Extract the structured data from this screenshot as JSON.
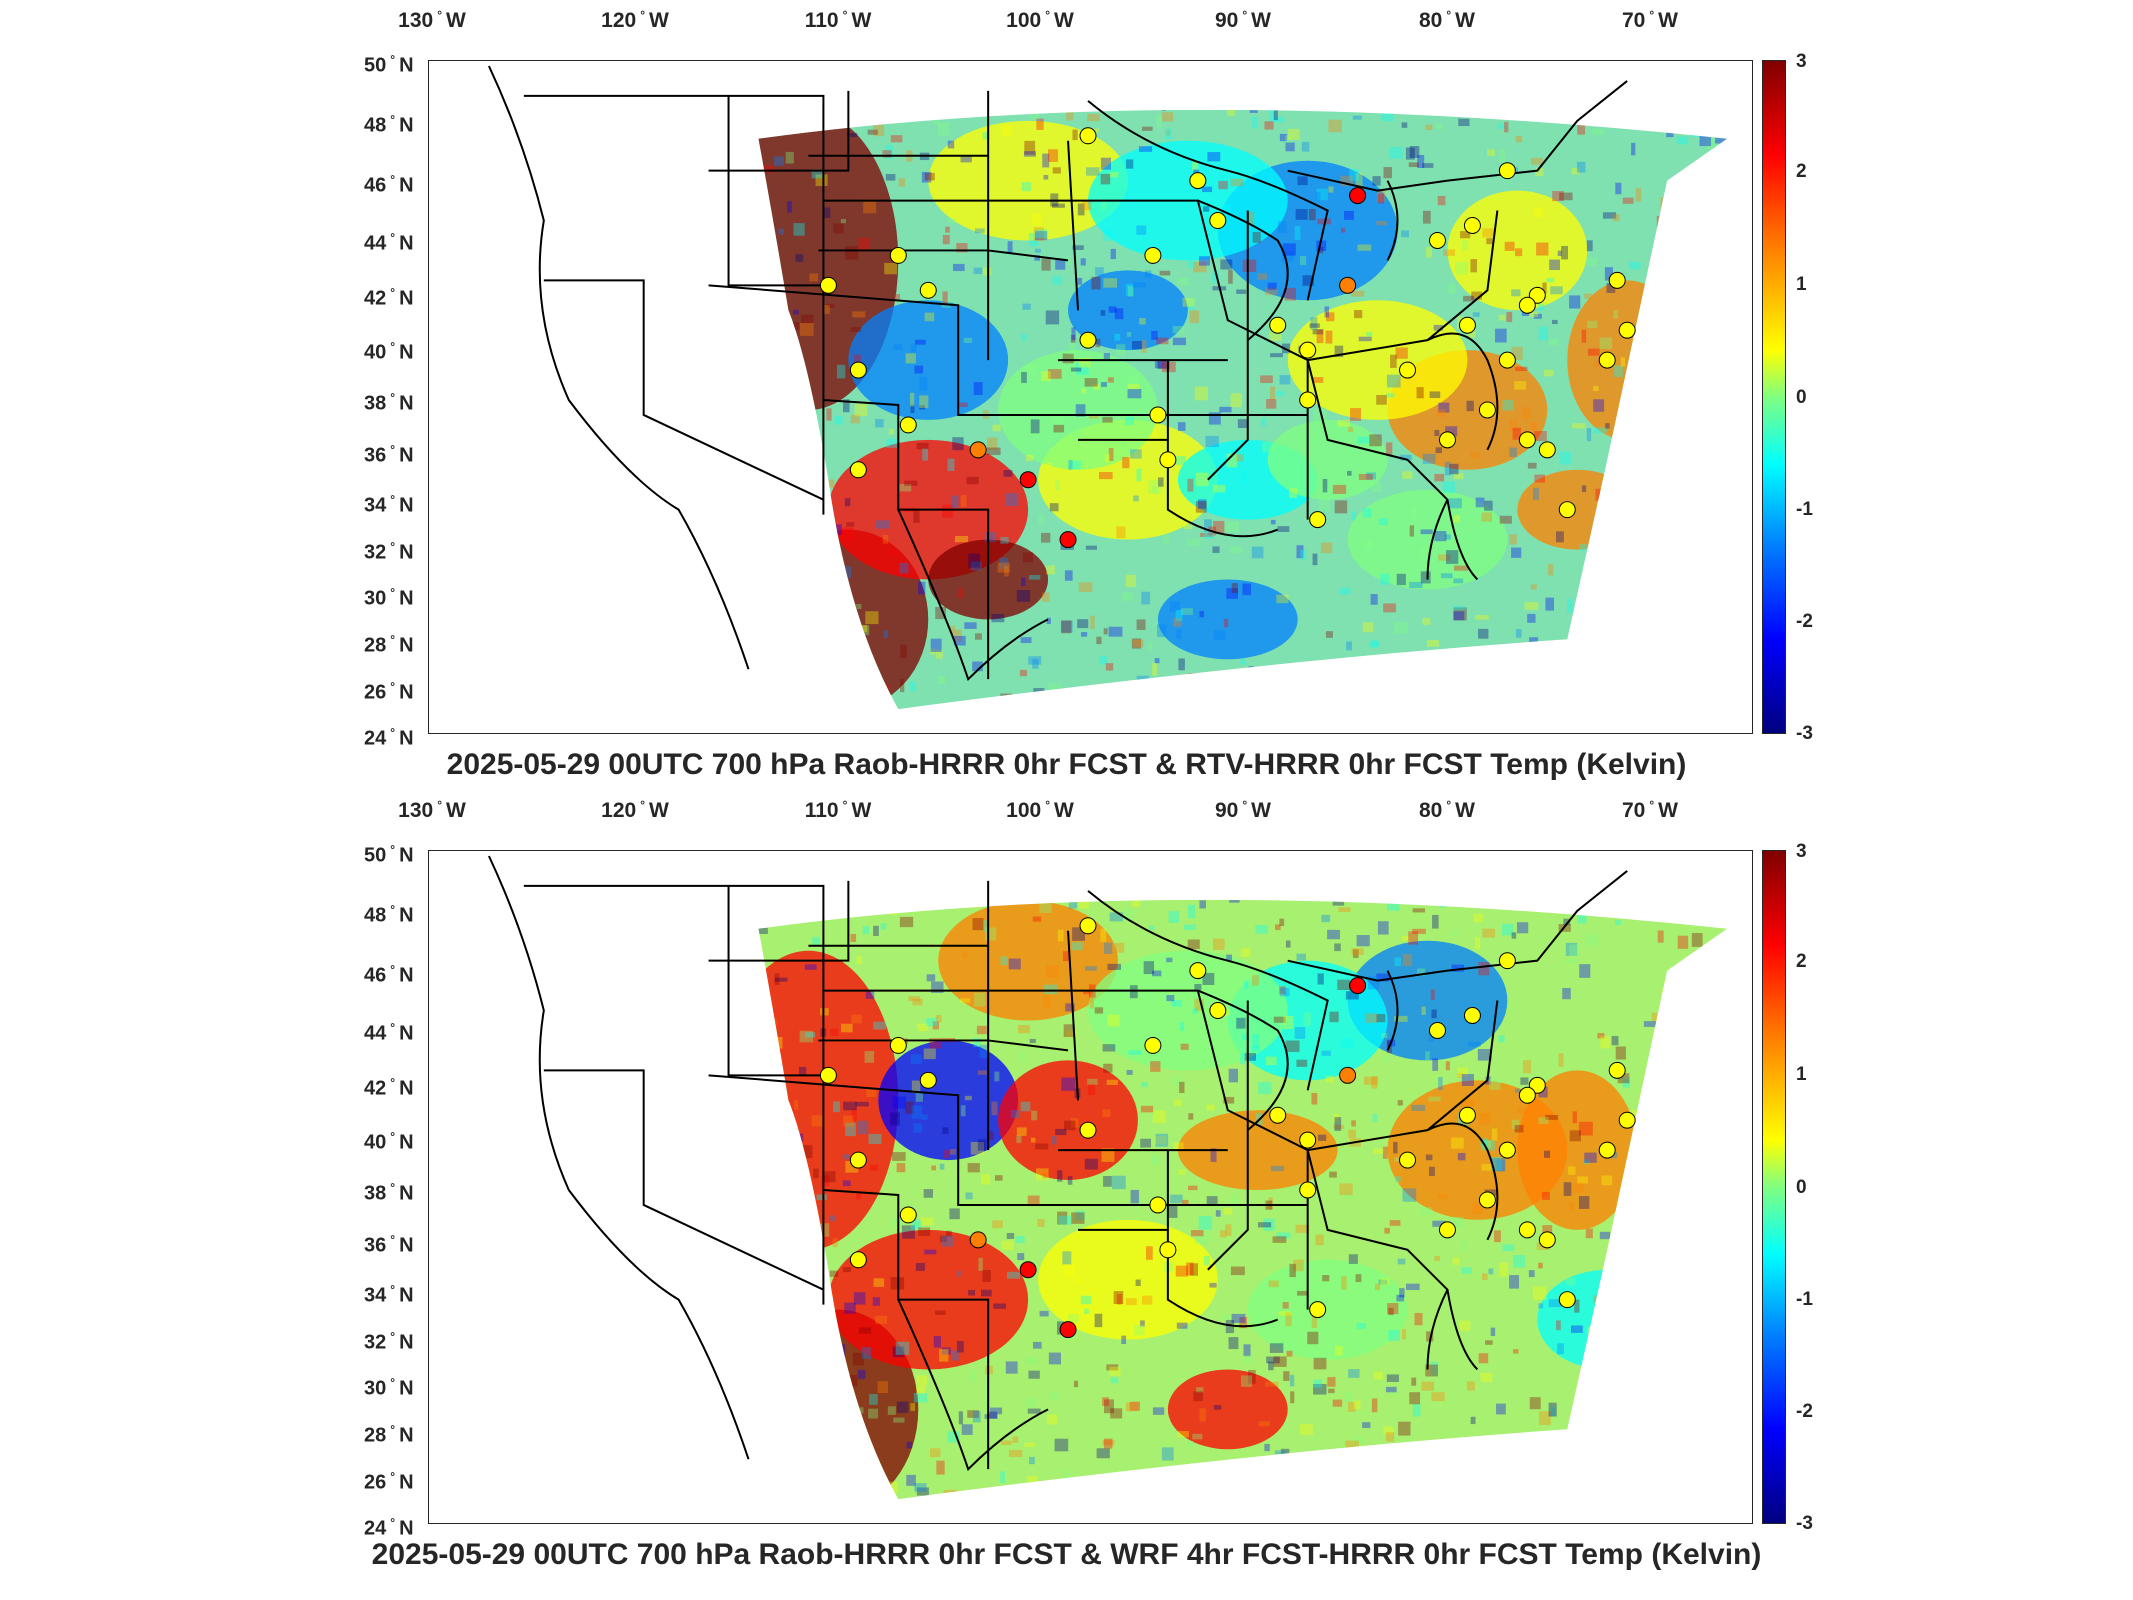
{
  "panels": [
    {
      "title": "2025-05-29 00UTC 700 hPa Raob-HRRR 0hr FCST & RTV-HRRR 0hr FCST Temp (Kelvin)",
      "lon_labels": [
        "130",
        "120",
        "110",
        "100",
        "90",
        "80",
        "70"
      ],
      "lon_suffix": "W",
      "lat_labels": [
        "50",
        "48",
        "46",
        "44",
        "42",
        "40",
        "38",
        "36",
        "34",
        "32",
        "30",
        "28",
        "26",
        "24"
      ],
      "lat_suffix": "N",
      "colorbar_ticks": [
        "3",
        "2",
        "1",
        "0",
        "-1",
        "-2",
        "-3"
      ]
    },
    {
      "title": "2025-05-29 00UTC 700 hPa Raob-HRRR 0hr FCST & WRF 4hr FCST-HRRR 0hr FCST Temp (Kelvin)",
      "lon_labels": [
        "130",
        "120",
        "110",
        "100",
        "90",
        "80",
        "70"
      ],
      "lon_suffix": "W",
      "lat_labels": [
        "50",
        "48",
        "46",
        "44",
        "42",
        "40",
        "38",
        "36",
        "34",
        "32",
        "30",
        "28",
        "26",
        "24"
      ],
      "lat_suffix": "N",
      "colorbar_ticks": [
        "3",
        "2",
        "1",
        "0",
        "-1",
        "-2",
        "-3"
      ]
    }
  ],
  "colors": {
    "colormap": [
      "#800000",
      "#ff0000",
      "#ff8000",
      "#ffff00",
      "#80ff80",
      "#00ffff",
      "#0080ff",
      "#0000ff",
      "#000080"
    ],
    "frame": "#262626",
    "land_empty": "#ffffff"
  }
}
